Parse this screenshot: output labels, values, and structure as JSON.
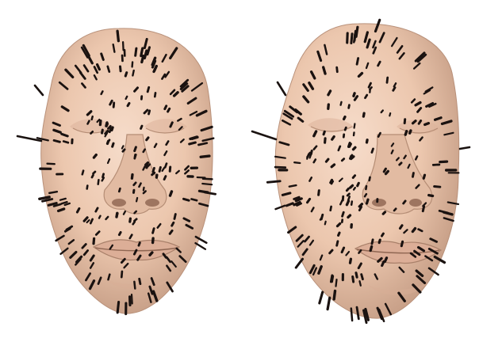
{
  "figure": {
    "background": "#ffffff",
    "skin_color": "#ecc7ae",
    "skin_shadow": "#c9a189",
    "skin_highlight": "#f6dcca",
    "marker_color": "#1a1210",
    "panels": [
      {
        "name": "face-mesh-frontal"
      },
      {
        "name": "face-mesh-rotated"
      }
    ]
  }
}
